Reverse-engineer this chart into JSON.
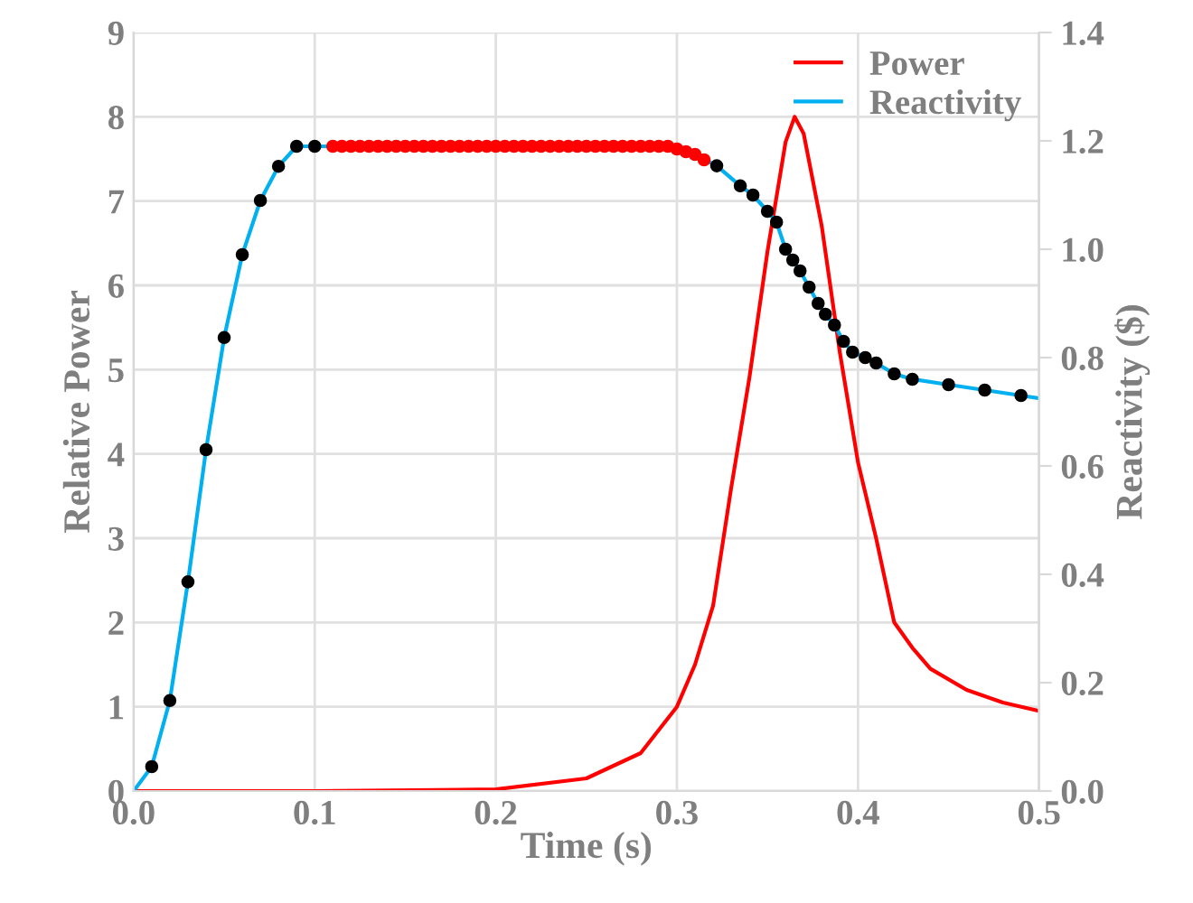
{
  "chart_data": {
    "type": "line",
    "xlabel": "Time (s)",
    "ylabel": "Relative Power",
    "y2label": "Reactivity ($)",
    "xlim": [
      0,
      0.5
    ],
    "xticks": [
      {
        "value": 0,
        "label": "0.0"
      },
      0.1,
      0.2,
      0.3,
      0.4,
      0.5
    ],
    "ylim": [
      0,
      9
    ],
    "yticks": [
      0,
      1,
      2,
      3,
      4,
      5,
      6,
      7,
      8,
      9
    ],
    "y2lim": [
      0,
      1.4
    ],
    "y2ticks": [
      {
        "value": 0,
        "label": "0.0"
      },
      0.2,
      0.4,
      0.6,
      0.8,
      {
        "value": 1,
        "label": "1.0"
      },
      1.2,
      1.4
    ],
    "grid": true,
    "legend": "top right",
    "series": [
      {
        "name": "Power",
        "color": "#ff0000",
        "x": [
          0,
          0.1,
          0.2,
          0.25,
          0.28,
          0.3,
          0.31,
          0.32,
          0.33,
          0.34,
          0.35,
          0.36,
          0.365,
          0.37,
          0.38,
          0.39,
          0.4,
          0.41,
          0.42,
          0.43,
          0.44,
          0.46,
          0.48,
          0.5
        ],
        "values": [
          0,
          0,
          0.02,
          0.15,
          0.45,
          1.0,
          1.5,
          2.2,
          3.6,
          4.9,
          6.4,
          7.7,
          8.0,
          7.8,
          6.7,
          5.2,
          3.9,
          3.0,
          2.0,
          1.7,
          1.45,
          1.2,
          1.05,
          0.95
        ]
      },
      {
        "name": "Reactivity",
        "type": "line",
        "axis": "y2",
        "color": "#00b0f0",
        "x": [
          0,
          0.01,
          0.02,
          0.03,
          0.04,
          0.05,
          0.06,
          0.07,
          0.08,
          0.09,
          0.1,
          0.3,
          0.31,
          0.322,
          0.335,
          0.342,
          0.35,
          0.355,
          0.36,
          0.364,
          0.368,
          0.373,
          0.378,
          0.382,
          0.387,
          0.392,
          0.397,
          0.404,
          0.41,
          0.42,
          0.43,
          0.45,
          0.47,
          0.49,
          0.5
        ],
        "values": [
          0,
          0.045,
          0.167,
          0.386,
          0.63,
          0.837,
          0.99,
          1.09,
          1.153,
          1.19,
          1.19,
          1.185,
          1.175,
          1.154,
          1.117,
          1.1,
          1.07,
          1.05,
          1.0,
          0.98,
          0.96,
          0.93,
          0.9,
          0.88,
          0.86,
          0.83,
          0.81,
          0.8,
          0.79,
          0.77,
          0.76,
          0.75,
          0.74,
          0.73,
          0.725
        ]
      },
      {
        "type": "scatter",
        "axis": "y2",
        "color": "#000000",
        "marker": "circle",
        "x": [
          0.01,
          0.02,
          0.03,
          0.04,
          0.05,
          0.06,
          0.07,
          0.08,
          0.09,
          0.1,
          0.322,
          0.335,
          0.342,
          0.35,
          0.355,
          0.36,
          0.364,
          0.368,
          0.373,
          0.378,
          0.382,
          0.387,
          0.392,
          0.397,
          0.404,
          0.41,
          0.42,
          0.43,
          0.45,
          0.47,
          0.49
        ],
        "values": [
          0.045,
          0.167,
          0.386,
          0.63,
          0.837,
          0.99,
          1.09,
          1.153,
          1.19,
          1.19,
          1.154,
          1.117,
          1.1,
          1.07,
          1.05,
          1.0,
          0.98,
          0.96,
          0.93,
          0.9,
          0.88,
          0.86,
          0.83,
          0.81,
          0.8,
          0.79,
          0.77,
          0.76,
          0.75,
          0.74,
          0.73
        ]
      },
      {
        "type": "scatter",
        "axis": "y2",
        "color": "#ff0000",
        "marker": "circle",
        "x": [
          0.11,
          0.115,
          0.12,
          0.125,
          0.13,
          0.135,
          0.14,
          0.145,
          0.15,
          0.155,
          0.16,
          0.165,
          0.17,
          0.175,
          0.18,
          0.185,
          0.19,
          0.195,
          0.2,
          0.205,
          0.21,
          0.215,
          0.22,
          0.225,
          0.23,
          0.235,
          0.24,
          0.245,
          0.25,
          0.255,
          0.26,
          0.265,
          0.27,
          0.275,
          0.28,
          0.285,
          0.29,
          0.295,
          0.3,
          0.305,
          0.31,
          0.315
        ],
        "values": [
          1.19,
          1.19,
          1.19,
          1.19,
          1.19,
          1.19,
          1.19,
          1.19,
          1.19,
          1.19,
          1.19,
          1.19,
          1.19,
          1.19,
          1.19,
          1.19,
          1.19,
          1.19,
          1.19,
          1.19,
          1.19,
          1.19,
          1.19,
          1.19,
          1.19,
          1.19,
          1.19,
          1.19,
          1.19,
          1.19,
          1.19,
          1.19,
          1.19,
          1.19,
          1.19,
          1.19,
          1.19,
          1.19,
          1.185,
          1.18,
          1.175,
          1.165
        ]
      }
    ]
  }
}
